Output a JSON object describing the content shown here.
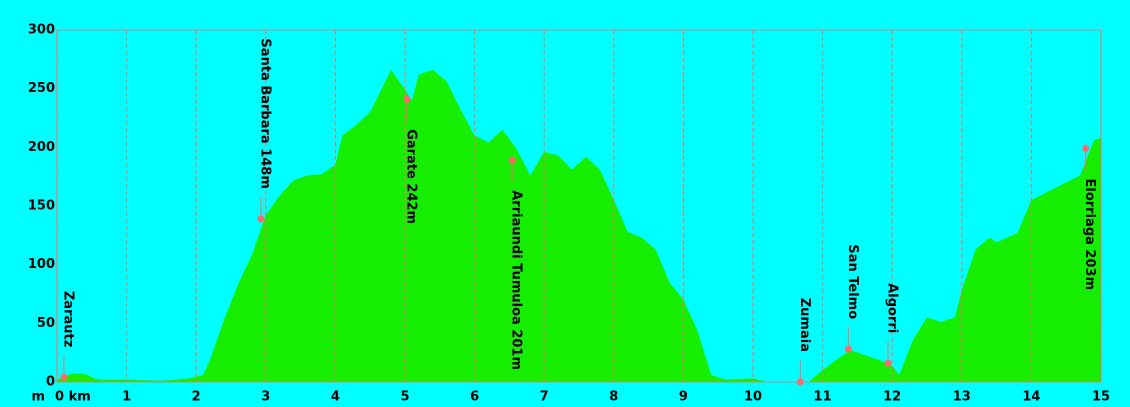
{
  "chart_data": {
    "type": "area",
    "y_unit": "m",
    "x": [
      0,
      0.1,
      0.2,
      0.4,
      0.5,
      0.6,
      1.0,
      1.5,
      1.9,
      2.1,
      2.2,
      2.4,
      2.6,
      2.8,
      3.0,
      3.2,
      3.4,
      3.6,
      3.8,
      4.0,
      4.1,
      4.3,
      4.5,
      4.6,
      4.8,
      5.0,
      5.1,
      5.2,
      5.4,
      5.6,
      5.8,
      6.0,
      6.2,
      6.4,
      6.6,
      6.8,
      7.0,
      7.2,
      7.4,
      7.6,
      7.8,
      8.0,
      8.2,
      8.4,
      8.6,
      8.8,
      9.0,
      9.2,
      9.4,
      9.6,
      10.0,
      10.2,
      10.6,
      10.8,
      11.0,
      11.2,
      11.4,
      11.6,
      11.8,
      12.0,
      12.1,
      12.3,
      12.5,
      12.7,
      12.9,
      13.0,
      13.2,
      13.4,
      13.5,
      13.8,
      14.0,
      14.3,
      14.5,
      14.7,
      14.9,
      15.0
    ],
    "values": [
      2,
      4,
      7,
      7,
      4,
      2,
      2,
      1,
      3,
      6,
      19,
      53,
      83,
      108,
      142,
      159,
      172,
      176,
      177,
      185,
      210,
      219,
      230,
      242,
      266,
      249,
      240,
      262,
      266,
      256,
      232,
      210,
      204,
      215,
      199,
      176,
      196,
      193,
      181,
      192,
      181,
      155,
      128,
      123,
      113,
      85,
      70,
      44,
      6,
      2,
      3,
      0,
      0,
      0,
      10,
      19,
      27,
      23,
      19,
      14,
      6,
      36,
      55,
      51,
      55,
      78,
      113,
      123,
      119,
      127,
      155,
      164,
      170,
      176,
      206,
      208
    ],
    "color": "#16ee00",
    "background": "#00ffff",
    "grid_color": "#ff6a6a",
    "xlim": [
      0,
      15
    ],
    "ylim": [
      0,
      300
    ],
    "xticks": [
      {
        "value": 0,
        "label": "0 km"
      },
      1,
      2,
      3,
      4,
      5,
      6,
      7,
      8,
      9,
      10,
      11,
      12,
      13,
      14,
      15
    ],
    "yticks": [
      0,
      50,
      100,
      150,
      200,
      250,
      300
    ],
    "grid": true,
    "annotations": [
      {
        "label": "Zarautz",
        "x": 0.1,
        "y": 4,
        "side": "above"
      },
      {
        "label": "Santa Barbara 148m",
        "x": 2.93,
        "y": 139,
        "side": "above"
      },
      {
        "label": "Garate 242m",
        "x": 5.03,
        "y": 241,
        "side": "below"
      },
      {
        "label": "Arriaundi Tumuloa 201m",
        "x": 6.54,
        "y": 189,
        "side": "below"
      },
      {
        "label": "Zumaia",
        "x": 10.68,
        "y": 0,
        "side": "above"
      },
      {
        "label": "San Telmo",
        "x": 11.37,
        "y": 28,
        "side": "above"
      },
      {
        "label": "Algorri",
        "x": 11.94,
        "y": 16,
        "side": "above"
      },
      {
        "label": "Elorriaga 203m",
        "x": 14.78,
        "y": 199,
        "side": "below"
      }
    ]
  }
}
